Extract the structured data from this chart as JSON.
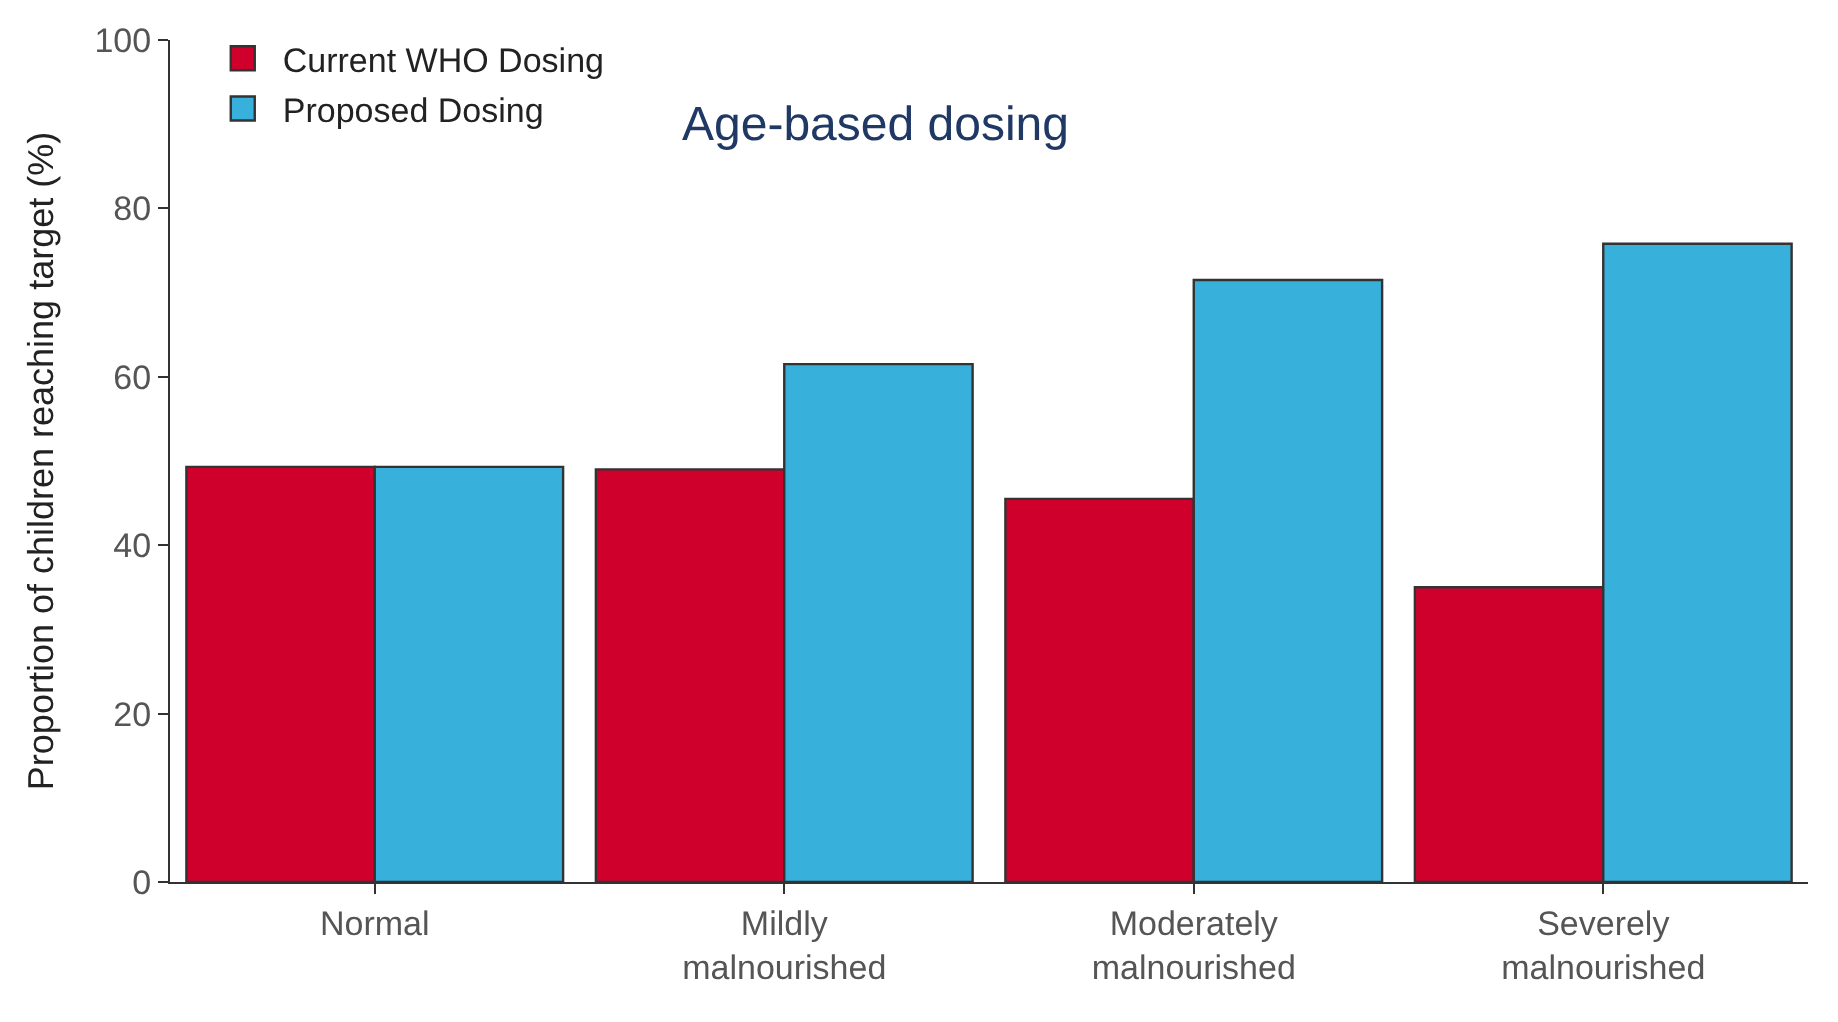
{
  "chart_data": {
    "type": "bar",
    "categories": [
      "Normal",
      "Mildly\nmalnourished",
      "Moderately\nmalnourished",
      "Severely\nmalnourished"
    ],
    "series": [
      {
        "name": "Current WHO Dosing",
        "color": "#d0002c",
        "values": [
          49.3,
          49,
          45.5,
          35
        ]
      },
      {
        "name": "Proposed Dosing",
        "color": "#38b0dc",
        "values": [
          49.3,
          61.5,
          71.5,
          75.8
        ]
      }
    ],
    "ylabel": "Proportion of children reaching target (%)",
    "ylim": [
      0,
      100
    ],
    "yticks": [
      0,
      20,
      40,
      60,
      80,
      100
    ],
    "annotations": [
      "Age-based dosing"
    ],
    "legend": "top left"
  }
}
